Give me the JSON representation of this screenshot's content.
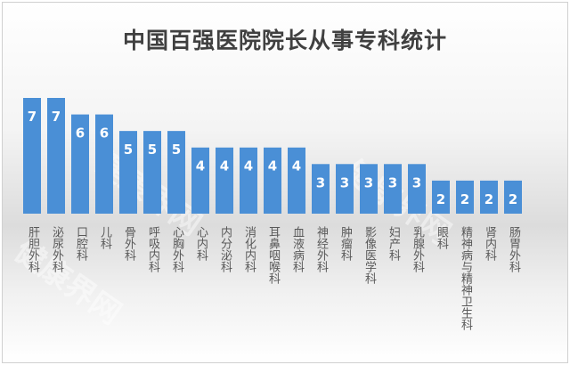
{
  "chart_data": {
    "type": "bar",
    "title": "中国百强医院院长从事专科统计",
    "categories": [
      "肝胆外科",
      "泌尿外科",
      "口腔科",
      "儿科",
      "骨外科",
      "呼吸内科",
      "心胸外科",
      "心内科",
      "内分泌科",
      "消化内科",
      "耳鼻咽喉科",
      "血液病科",
      "神经外科",
      "肿瘤科",
      "影像医学科",
      "妇产科",
      "乳腺外科",
      "眼科",
      "精神病与精神卫生科",
      "肾内科",
      "肠胃外科"
    ],
    "values": [
      7,
      7,
      6,
      6,
      5,
      5,
      5,
      4,
      4,
      4,
      4,
      4,
      3,
      3,
      3,
      3,
      3,
      2,
      2,
      2,
      2
    ],
    "ylim": [
      0,
      7
    ],
    "grid": false,
    "data_labels": true,
    "bar_color": "#4a8fd6",
    "label_color": "#ffffff"
  },
  "watermark": "健康界网"
}
